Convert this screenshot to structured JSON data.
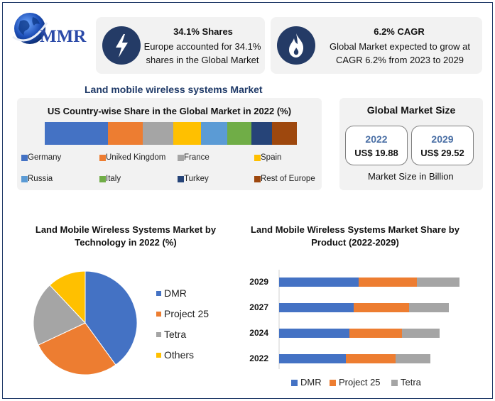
{
  "logo": {
    "text": "MMR"
  },
  "stats": [
    {
      "icon": "lightning-icon",
      "title": "34.1% Shares",
      "desc": "Europe accounted for 34.1% shares in the Global Market"
    },
    {
      "icon": "flame-icon",
      "title": "6.2% CAGR",
      "desc": "Global Market expected to grow at CAGR 6.2% from 2023 to 2029"
    }
  ],
  "section_title": "Land mobile wireless systems Market",
  "global_size": {
    "title": "Global Market Size",
    "boxes": [
      {
        "year": "2022",
        "value": "US$ 19.88"
      },
      {
        "year": "2029",
        "value": "US$ 29.52"
      }
    ],
    "note": "Market Size in Billion"
  },
  "colors": {
    "germany": "#4472c4",
    "uk": "#ed7d31",
    "france": "#a5a5a5",
    "spain": "#ffc000",
    "russia": "#5b9bd5",
    "italy": "#70ad47",
    "turkey": "#264478",
    "rest": "#9e480e",
    "dmr": "#4472c4",
    "p25": "#ed7d31",
    "tetra": "#a5a5a5",
    "others": "#ffc000"
  },
  "chart_data": [
    {
      "type": "bar",
      "stacked": true,
      "orientation": "horizontal",
      "title": "US Country-wise Share in the Global Market in 2022 (%)",
      "categories": [
        "Germany",
        "Uniked Kingdom",
        "France",
        "Spain",
        "Russia",
        "Italy",
        "Turkey",
        "Rest of Europe"
      ],
      "values": [
        25,
        14,
        12,
        11,
        10.5,
        9.5,
        8,
        10
      ],
      "color_keys": [
        "germany",
        "uk",
        "france",
        "spain",
        "russia",
        "italy",
        "turkey",
        "rest"
      ]
    },
    {
      "type": "pie",
      "title": "Land Mobile Wireless Systems Market by Technology in 2022 (%)",
      "labels": [
        "DMR",
        "Project 25",
        "Tetra",
        "Others"
      ],
      "values": [
        40,
        28,
        20,
        12
      ],
      "color_keys": [
        "dmr",
        "p25",
        "tetra",
        "others"
      ]
    },
    {
      "type": "bar",
      "stacked": true,
      "orientation": "horizontal",
      "title": "Land Mobile Wireless Systems Market Share by Product (2022-2029)",
      "categories": [
        "2029",
        "2027",
        "2024",
        "2022"
      ],
      "series": [
        {
          "name": "DMR",
          "color_key": "dmr",
          "values": [
            11.2,
            10.5,
            9.9,
            9.4
          ]
        },
        {
          "name": "Project 25",
          "color_key": "p25",
          "values": [
            8.2,
            7.8,
            7.4,
            7.0
          ]
        },
        {
          "name": "Tetra",
          "color_key": "tetra",
          "values": [
            6.0,
            5.6,
            5.3,
            4.9
          ]
        }
      ],
      "xlim": [
        0,
        26
      ]
    }
  ]
}
